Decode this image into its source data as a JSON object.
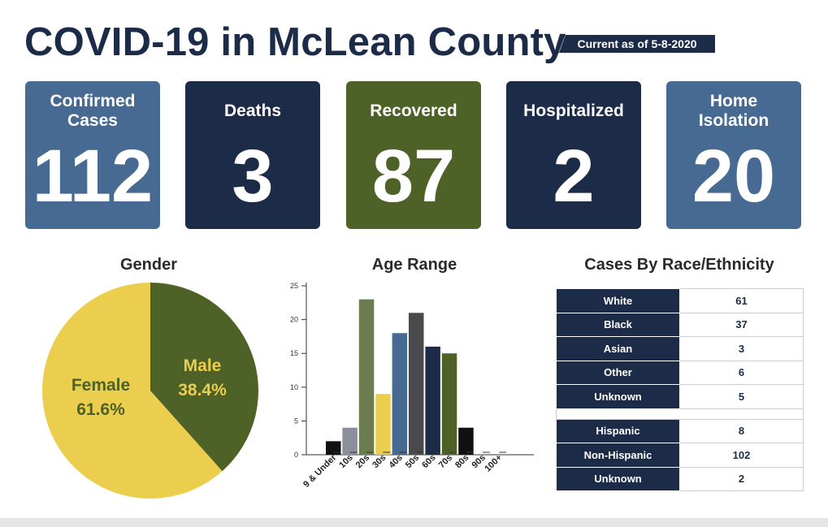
{
  "header": {
    "title": "COVID-19 in McLean County",
    "current": "Current as of 5-8-2020"
  },
  "stats": [
    {
      "label": "Confirmed Cases",
      "value": "112",
      "color": "#466a91"
    },
    {
      "label": "Deaths",
      "value": "3",
      "color": "#1c2b47"
    },
    {
      "label": "Recovered",
      "value": "87",
      "color": "#4e6127"
    },
    {
      "label": "Hospitalized",
      "value": "2",
      "color": "#1c2b47"
    },
    {
      "label": "Home Isolation",
      "value": "20",
      "color": "#466a91"
    }
  ],
  "chart_data": [
    {
      "type": "pie",
      "title": "Gender",
      "slices": [
        {
          "name": "Female",
          "label": "61.6%",
          "value": 61.6,
          "color": "#ecce4f"
        },
        {
          "name": "Male",
          "label": "38.4%",
          "value": 38.4,
          "color": "#4e6127"
        }
      ]
    },
    {
      "type": "bar",
      "title": "Age Range",
      "categories": [
        "9 & Under",
        "10s",
        "20s",
        "30s",
        "40s",
        "50s",
        "60s",
        "70s",
        "80s",
        "90s",
        "100+"
      ],
      "values": [
        2,
        4,
        23,
        9,
        18,
        21,
        16,
        15,
        4,
        0,
        0
      ],
      "colors": [
        "#111111",
        "#8a8f9a",
        "#6b7c4e",
        "#ecce4f",
        "#466a91",
        "#4a4a4e",
        "#1c2b47",
        "#4e6127",
        "#111111",
        "#111111",
        "#111111"
      ],
      "ylim": [
        0,
        25
      ],
      "yticks": [
        0,
        5,
        10,
        15,
        20,
        25
      ],
      "xlabel": "",
      "ylabel": ""
    },
    {
      "type": "table",
      "title": "Cases By Race/Ethnicity",
      "race": [
        {
          "name": "White",
          "value": 61
        },
        {
          "name": "Black",
          "value": 37
        },
        {
          "name": "Asian",
          "value": 3
        },
        {
          "name": "Other",
          "value": 6
        },
        {
          "name": "Unknown",
          "value": 5
        }
      ],
      "ethnicity": [
        {
          "name": "Hispanic",
          "value": 8
        },
        {
          "name": "Non-Hispanic",
          "value": 102
        },
        {
          "name": "Unknown",
          "value": 2
        }
      ]
    }
  ]
}
